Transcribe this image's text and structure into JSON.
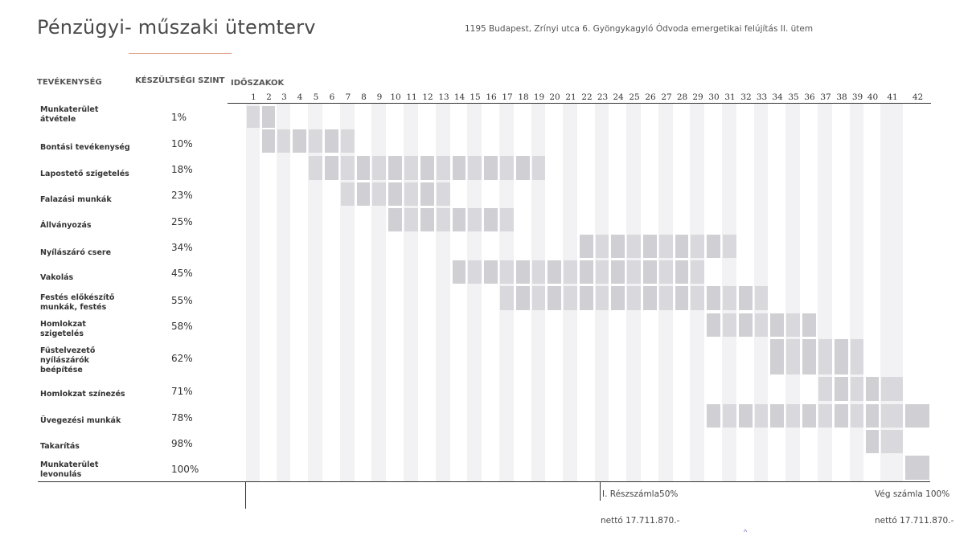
{
  "header": {
    "title": "Pénzügyi- műszaki ütemterv",
    "subtitle": "1195 Budapest, Zrínyi utca 6. Gyöngykagyló Ódvoda emergetikai felújítás II. ütem"
  },
  "columns": {
    "activity": "TEVÉKENYSÉG",
    "completion": "KÉSZÜLTSÉGI SZINT",
    "periods": "IDŐSZAKOK"
  },
  "periods": [
    "1",
    "2",
    "3",
    "4",
    "5",
    "6",
    "7",
    "8",
    "9",
    "10",
    "11",
    "12",
    "13",
    "14",
    "15",
    "16",
    "17",
    "18",
    "19",
    "20",
    "21",
    "22",
    "23",
    "24",
    "25",
    "26",
    "27",
    "28",
    "29",
    "30",
    "31",
    "32",
    "33",
    "34",
    "35",
    "36",
    "37",
    "38",
    "39",
    "40",
    "41",
    "42"
  ],
  "activities": [
    {
      "name": "Munkaterület átvétele",
      "lines": [
        "Munkaterület",
        "átvétele"
      ],
      "completion": "1%",
      "start": 1,
      "end": 2
    },
    {
      "name": "Bontási tevékenység",
      "lines": [
        "Bontási tevékenység"
      ],
      "completion": "10%",
      "start": 2,
      "end": 7
    },
    {
      "name": "Lapostető szigetelés",
      "lines": [
        "Lapostető szigetelés"
      ],
      "completion": "18%",
      "start": 5,
      "end": 19
    },
    {
      "name": "Falazási munkák",
      "lines": [
        "Falazási munkák"
      ],
      "completion": "23%",
      "start": 7,
      "end": 13
    },
    {
      "name": "Állványozás",
      "lines": [
        "Állványozás"
      ],
      "completion": "25%",
      "start": 10,
      "end": 17
    },
    {
      "name": "Nyílászáró csere",
      "lines": [
        "Nyílászáró csere"
      ],
      "completion": "34%",
      "start": 22,
      "end": 31
    },
    {
      "name": "Vakolás",
      "lines": [
        "Vakolás"
      ],
      "completion": "45%",
      "start": 14,
      "end": 29
    },
    {
      "name": "Festés előkészítő munkák, festés",
      "lines": [
        "Festés előkészítő",
        "munkák, festés"
      ],
      "completion": "55%",
      "start": 17,
      "end": 33
    },
    {
      "name": "Homlokzat szigetelés",
      "lines": [
        "Homlokzat",
        "szigetelés"
      ],
      "completion": "58%",
      "start": 30,
      "end": 36
    },
    {
      "name": "Füstelvezető nyílászárók beépítése",
      "lines": [
        "Füstelvezető",
        "nyílászárók",
        "beépítése"
      ],
      "completion": "62%",
      "start": 34,
      "end": 39
    },
    {
      "name": "Homlokzat színezés",
      "lines": [
        "Homlokzat színezés"
      ],
      "completion": "71%",
      "start": 37,
      "end": 41
    },
    {
      "name": "Üvegezési munkák",
      "lines": [
        "Üvegezési munkák"
      ],
      "completion": "78%",
      "start": 30,
      "end": 42
    },
    {
      "name": "Takarítás",
      "lines": [
        "Takarítás"
      ],
      "completion": "98%",
      "start": 40,
      "end": 41
    },
    {
      "name": "Munkaterület levonulás",
      "lines": [
        "Munkaterület",
        "levonulás"
      ],
      "completion": "100%",
      "start": 42,
      "end": 42
    }
  ],
  "milestones": [
    {
      "label": "I. Részszámla50%",
      "amount": "nettó 17.711.870.-"
    },
    {
      "label": "Vég számla 100%",
      "amount": "nettó 17.711.870.-"
    }
  ],
  "colors": {
    "bar": "#d9d9dd",
    "bar_dark": "#cfcfd4",
    "stripe": "#f2f2f4",
    "title_underline": "#e2a48a"
  }
}
